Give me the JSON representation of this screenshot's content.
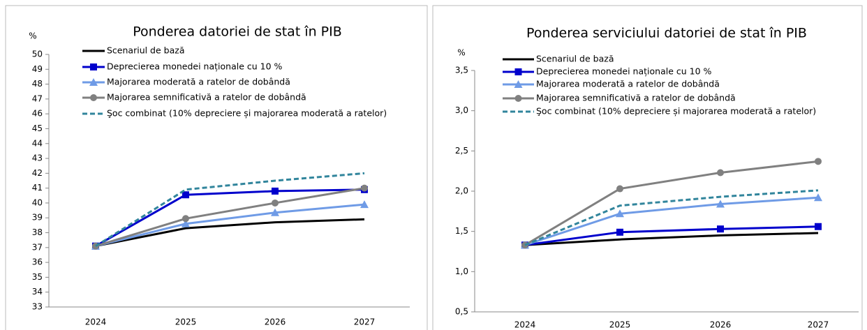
{
  "chart_data": [
    {
      "type": "line",
      "title": "Ponderea datoriei de stat în PIB",
      "y_label": "%",
      "categories": [
        "2024",
        "2025",
        "2026",
        "2027"
      ],
      "ylim": [
        33,
        50
      ],
      "yticks": [
        33,
        34,
        35,
        36,
        37,
        38,
        39,
        40,
        41,
        42,
        43,
        44,
        45,
        46,
        47,
        48,
        49,
        50
      ],
      "series": [
        {
          "name": "Scenariul de bază",
          "color": "#000000",
          "marker": null,
          "dashed": false,
          "values": [
            37.1,
            38.3,
            38.7,
            38.9
          ]
        },
        {
          "name": "Deprecierea monedei naționale cu 10 %",
          "color": "#0000cc",
          "marker": "square",
          "dashed": false,
          "values": [
            37.1,
            40.55,
            40.8,
            40.9
          ]
        },
        {
          "name": "Majorarea moderată a ratelor de dobândă",
          "color": "#6f9be6",
          "marker": "triangle",
          "dashed": false,
          "values": [
            37.1,
            38.6,
            39.35,
            39.9
          ]
        },
        {
          "name": "Majorarea semnificativă a ratelor de dobândă",
          "color": "#808080",
          "marker": "circle",
          "dashed": false,
          "values": [
            37.1,
            38.95,
            40.0,
            41.0
          ]
        },
        {
          "name": "Şoc combinat (10% depreciere și majorarea moderată a ratelor)",
          "color": "#31859c",
          "marker": null,
          "dashed": true,
          "values": [
            37.1,
            40.9,
            41.5,
            42.0
          ]
        }
      ]
    },
    {
      "type": "line",
      "title": "Ponderea serviciului datoriei de stat în PIB",
      "y_label": "%",
      "categories": [
        "2024",
        "2025",
        "2026",
        "2027"
      ],
      "ylim": [
        0.5,
        3.5
      ],
      "yticks": [
        {
          "value": 0.5,
          "label": "0,5"
        },
        {
          "value": 1.0,
          "label": "1,0"
        },
        {
          "value": 1.5,
          "label": "1,5"
        },
        {
          "value": 2.0,
          "label": "2,0"
        },
        {
          "value": 2.5,
          "label": "2,5"
        },
        {
          "value": 3.0,
          "label": "3,0"
        },
        {
          "value": 3.5,
          "label": "3,5"
        }
      ],
      "series": [
        {
          "name": "Scenariul de bază",
          "color": "#000000",
          "marker": null,
          "dashed": false,
          "values": [
            1.33,
            1.4,
            1.45,
            1.48
          ]
        },
        {
          "name": "Deprecierea monedei naționale cu 10 %",
          "color": "#0000cc",
          "marker": "square",
          "dashed": false,
          "values": [
            1.33,
            1.49,
            1.53,
            1.56
          ]
        },
        {
          "name": "Majorarea moderată a ratelor de dobândă",
          "color": "#6f9be6",
          "marker": "triangle",
          "dashed": false,
          "values": [
            1.33,
            1.72,
            1.84,
            1.92
          ]
        },
        {
          "name": "Majorarea semnificativă a ratelor de dobândă",
          "color": "#808080",
          "marker": "circle",
          "dashed": false,
          "values": [
            1.33,
            2.03,
            2.23,
            2.37
          ]
        },
        {
          "name": "Şoc combinat (10% depreciere și majorarea moderată a ratelor)",
          "color": "#31859c",
          "marker": null,
          "dashed": true,
          "values": [
            1.33,
            1.82,
            1.93,
            2.01
          ]
        }
      ]
    }
  ]
}
